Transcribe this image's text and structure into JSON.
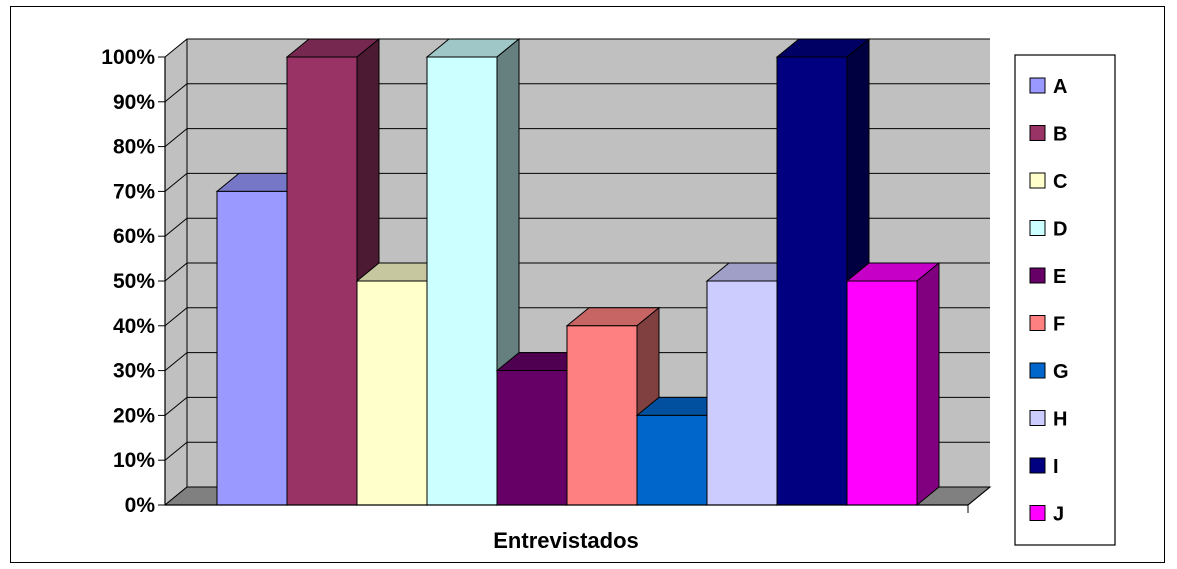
{
  "chart_data": {
    "type": "bar",
    "three_d": true,
    "xlabel": "Entrevistados",
    "ylabel": "",
    "ylim": [
      0,
      100
    ],
    "y_ticks": [
      "0%",
      "10%",
      "20%",
      "30%",
      "40%",
      "50%",
      "60%",
      "70%",
      "80%",
      "90%",
      "100%"
    ],
    "grid": true,
    "legend_position": "right",
    "series": [
      {
        "name": "A",
        "value": 70,
        "color": "#9999FF"
      },
      {
        "name": "B",
        "value": 100,
        "color": "#993366"
      },
      {
        "name": "C",
        "value": 50,
        "color": "#FFFFCC"
      },
      {
        "name": "D",
        "value": 100,
        "color": "#CCFFFF"
      },
      {
        "name": "E",
        "value": 30,
        "color": "#660066"
      },
      {
        "name": "F",
        "value": 40,
        "color": "#FF8080"
      },
      {
        "name": "G",
        "value": 20,
        "color": "#0066CC"
      },
      {
        "name": "H",
        "value": 50,
        "color": "#CCCCFF"
      },
      {
        "name": "I",
        "value": 100,
        "color": "#000080"
      },
      {
        "name": "J",
        "value": 50,
        "color": "#FF00FF"
      }
    ],
    "colors": {
      "plot_wall": "#C0C0C0",
      "floor": "#808080",
      "gridline": "#000000"
    }
  }
}
